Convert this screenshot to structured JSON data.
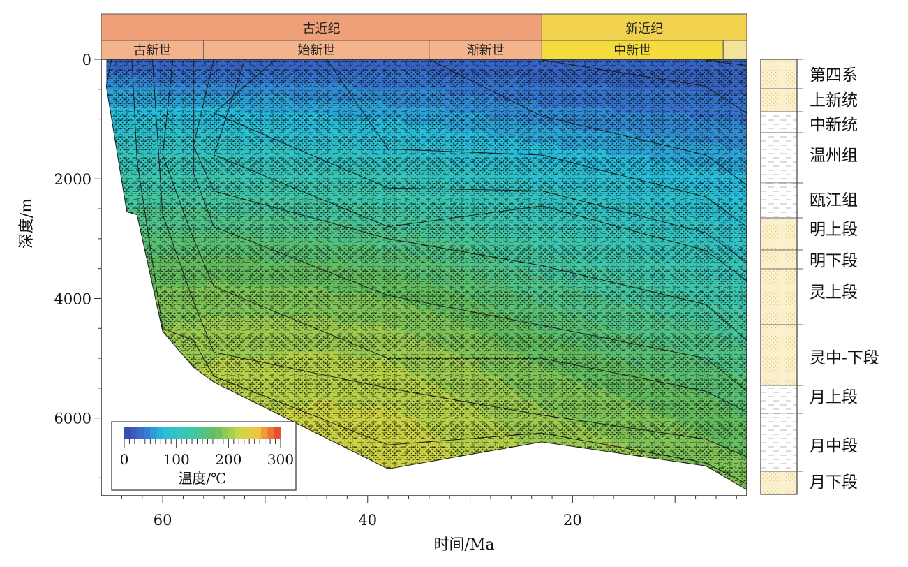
{
  "chart_data": {
    "type": "area",
    "title": "",
    "xlabel": "时间/Ma",
    "ylabel": "深度/m",
    "xlim": [
      66,
      3
    ],
    "ylim": [
      0,
      7300
    ],
    "x_reversed": true,
    "y_reversed": true,
    "x_ticks": [
      "60",
      "40",
      "20"
    ],
    "x_tick_values": [
      60,
      40,
      20
    ],
    "y_ticks": [
      "0",
      "2000",
      "4000",
      "6000"
    ],
    "y_tick_values": [
      0,
      2000,
      4000,
      6000
    ],
    "periods": [
      {
        "label": "古近纪",
        "from": 66,
        "to": 23
      },
      {
        "label": "新近纪",
        "from": 23,
        "to": 3
      }
    ],
    "epochs": [
      {
        "label": "古新世",
        "from": 66,
        "to": 56
      },
      {
        "label": "始新世",
        "from": 56,
        "to": 34
      },
      {
        "label": "渐新世",
        "from": 34,
        "to": 23
      },
      {
        "label": "中新世",
        "from": 23,
        "to": 5.3
      },
      {
        "label": "",
        "from": 5.3,
        "to": 3
      }
    ],
    "burial_x": [
      65.5,
      63.5,
      62.5,
      60,
      57,
      55,
      38,
      23,
      7,
      3
    ],
    "horizon_names": [
      "第四系",
      "上新统",
      "中新统",
      "温州组",
      "瓯江组",
      "明上段",
      "明下段",
      "灵上段",
      "灵中-下段",
      "月上段",
      "月中段",
      "月下段"
    ],
    "horizons": [
      {
        "top_ma": 5,
        "depth": [
          null,
          null,
          null,
          null,
          null,
          null,
          null,
          null,
          20,
          100
        ]
      },
      {
        "top_ma": 23,
        "depth": [
          null,
          null,
          null,
          null,
          null,
          null,
          null,
          10,
          450,
          900
        ]
      },
      {
        "top_ma": 34,
        "depth": [
          null,
          null,
          null,
          null,
          null,
          null,
          null,
          950,
          1600,
          2100
        ]
      },
      {
        "top_ma": 44,
        "depth": [
          null,
          null,
          null,
          null,
          null,
          null,
          1500,
          1600,
          2300,
          2800
        ]
      },
      {
        "top_ma": 49,
        "depth": [
          null,
          null,
          null,
          null,
          null,
          900,
          2150,
          2200,
          2900,
          3400
        ]
      },
      {
        "top_ma": 52,
        "depth": [
          null,
          null,
          null,
          null,
          null,
          1600,
          2800,
          2450,
          3200,
          3700
        ]
      },
      {
        "top_ma": 55,
        "depth": [
          null,
          null,
          null,
          null,
          1450,
          2200,
          3000,
          3450,
          4100,
          4700
        ]
      },
      {
        "top_ma": 57,
        "depth": [
          null,
          null,
          null,
          null,
          1900,
          2800,
          3950,
          4450,
          5000,
          5550
        ]
      },
      {
        "top_ma": 59,
        "depth": [
          null,
          null,
          null,
          1600,
          3000,
          3800,
          5000,
          5000,
          5550,
          5900
        ]
      },
      {
        "top_ma": 61,
        "depth": [
          null,
          null,
          null,
          2600,
          4050,
          4900,
          5500,
          5950,
          6350,
          6650
        ]
      },
      {
        "top_ma": 63,
        "depth": [
          null,
          null,
          1700,
          4500,
          4700,
          5300,
          6450,
          6250,
          6750,
          7100
        ]
      },
      {
        "top_ma": 65,
        "depth": [
          450,
          2550,
          2600,
          4550,
          5150,
          5400,
          6850,
          6400,
          6800,
          7200
        ]
      }
    ],
    "colorbar": {
      "label": "温度/℃",
      "min": 0,
      "max": 300,
      "tick_labels": [
        "0",
        "100",
        "200",
        "300"
      ]
    },
    "temperature_grid": {
      "x": [
        65,
        55,
        45,
        38,
        30,
        23,
        15,
        8,
        3
      ],
      "depth": [
        0,
        500,
        1000,
        1500,
        2000,
        2500,
        3000,
        3500,
        4000,
        4500,
        5000,
        5500,
        6000,
        6500,
        7000
      ],
      "celsius": [
        [
          20,
          20,
          20,
          20,
          20,
          20,
          20,
          20,
          20
        ],
        [
          55,
          52,
          48,
          45,
          40,
          35,
          32,
          30,
          28
        ],
        [
          80,
          78,
          72,
          68,
          60,
          52,
          48,
          45,
          42
        ],
        [
          105,
          102,
          95,
          90,
          82,
          72,
          66,
          60,
          56
        ],
        [
          125,
          122,
          118,
          112,
          102,
          90,
          82,
          76,
          70
        ],
        [
          145,
          142,
          138,
          132,
          122,
          108,
          98,
          90,
          84
        ],
        [
          160,
          160,
          155,
          150,
          140,
          125,
          114,
          104,
          97
        ],
        [
          172,
          175,
          172,
          168,
          156,
          140,
          128,
          118,
          110
        ],
        [
          182,
          188,
          186,
          182,
          170,
          154,
          142,
          132,
          123
        ],
        [
          190,
          198,
          198,
          195,
          182,
          167,
          155,
          145,
          136
        ],
        [
          196,
          206,
          208,
          206,
          193,
          178,
          167,
          157,
          148
        ],
        [
          200,
          212,
          216,
          214,
          202,
          188,
          178,
          168,
          159
        ],
        [
          203,
          217,
          222,
          222,
          210,
          196,
          187,
          178,
          169
        ],
        [
          205,
          220,
          227,
          229,
          216,
          203,
          195,
          186,
          178
        ],
        [
          206,
          222,
          230,
          234,
          220,
          208,
          201,
          193,
          186
        ]
      ]
    },
    "stratigraphic_column": [
      "第四系",
      "上新统",
      "中新统",
      "温州组",
      "瓯江组",
      "明上段",
      "明下段",
      "灵上段",
      "灵中-下段",
      "月上段",
      "月中段",
      "月下段"
    ]
  }
}
